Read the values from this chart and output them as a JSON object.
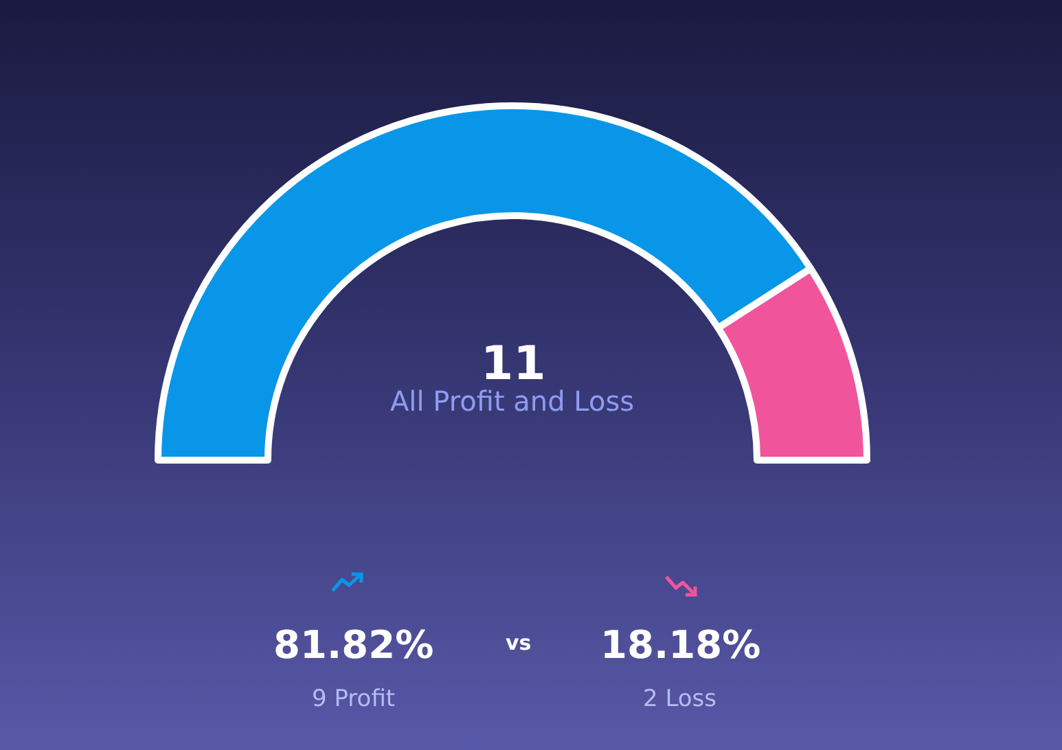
{
  "chart_data": {
    "type": "donut",
    "categories": [
      null,
      null
    ],
    "values": [
      81.82,
      18.18
    ],
    "colors": [
      "#0a96e8",
      "#f0559c"
    ],
    "annotations": [
      "11",
      "All Profit and Loss",
      "vs",
      "9 Profit",
      "2 Loss",
      "81.82%",
      "18.18%"
    ],
    "legend": false
  }
}
